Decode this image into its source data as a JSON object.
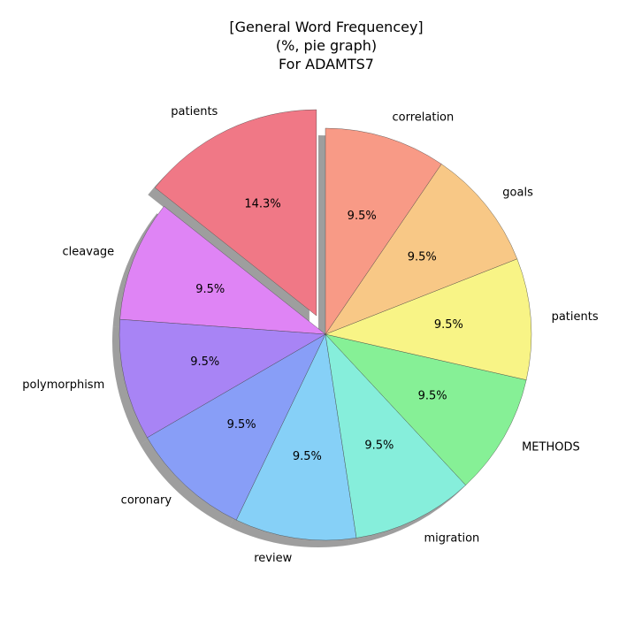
{
  "chart_data": {
    "type": "pie",
    "title_lines": [
      "[General Word Frequencey]",
      "(%, pie graph)",
      "For ADAMTS7"
    ],
    "categories": [
      "patients",
      "cleavage",
      "polymorphism",
      "coronary",
      "review",
      "migration",
      "METHODS",
      "patients",
      "goals",
      "correlation"
    ],
    "values": [
      14.3,
      9.5,
      9.5,
      9.5,
      9.5,
      9.5,
      9.5,
      9.5,
      9.5,
      9.5
    ],
    "percent_labels": [
      "14.3%",
      "9.5%",
      "9.5%",
      "9.5%",
      "9.5%",
      "9.5%",
      "9.5%",
      "9.5%",
      "9.5%",
      "9.5%"
    ],
    "colors": [
      "#f07886",
      "#df84f5",
      "#a884f5",
      "#889ef7",
      "#86d0f7",
      "#86eedb",
      "#86f096",
      "#f8f486",
      "#f8c886",
      "#f89a86"
    ],
    "exploded": [
      true,
      false,
      false,
      false,
      false,
      false,
      false,
      false,
      false,
      false
    ],
    "start_angle_deg": 90,
    "direction": "counterclockwise",
    "shadow": true,
    "legend": "none"
  }
}
